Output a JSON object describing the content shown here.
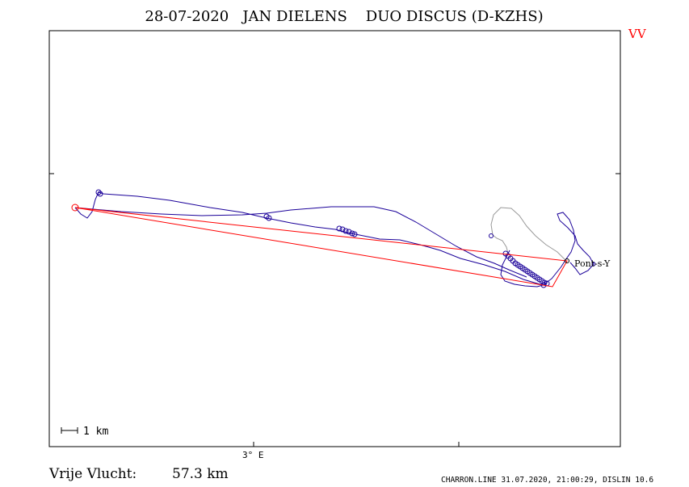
{
  "header": {
    "title": "28-07-2020   JAN DIELENS    DUO DISCUS (D-KZHS)",
    "flag": "VV",
    "flag_color": "#ff0000"
  },
  "map": {
    "scale_label": "1 km",
    "longitude_label": "3° E",
    "waypoint_label": "Pont-s-Y",
    "task_color": "#ff0000",
    "track_color": "#1a0099",
    "track_gray_color": "#999999"
  },
  "footer": {
    "distance_label": "Vrije Vlucht:",
    "distance_value": "57.3 km",
    "source": "CHARRON.LINE 31.07.2020, 21:00:29, DISLIN 10.6"
  }
}
